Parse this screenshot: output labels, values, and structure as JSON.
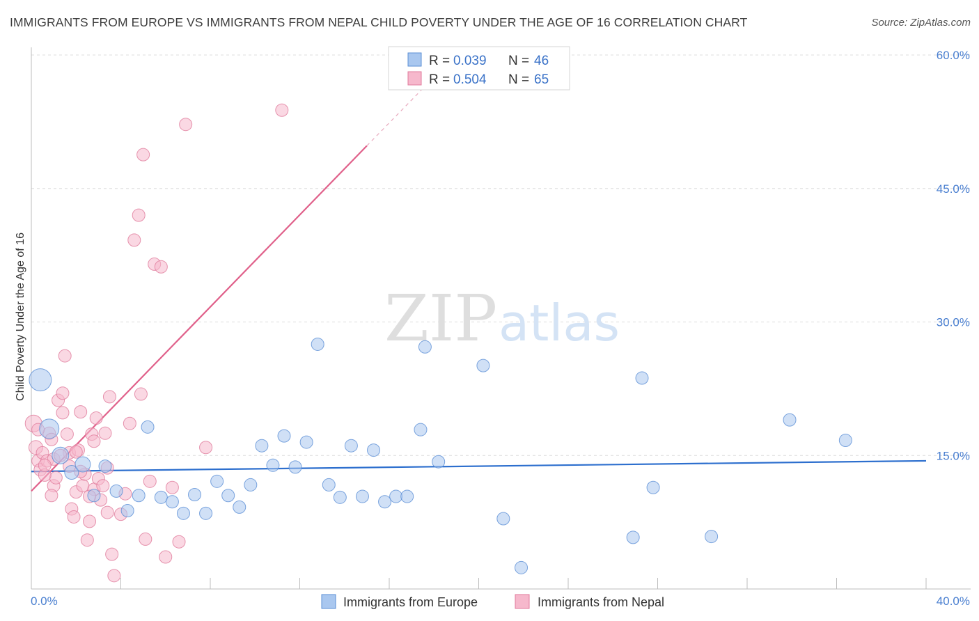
{
  "header": {
    "title": "IMMIGRANTS FROM EUROPE VS IMMIGRANTS FROM NEPAL CHILD POVERTY UNDER THE AGE OF 16 CORRELATION CHART",
    "source": "Source: ZipAtlas.com"
  },
  "watermark": {
    "zip": "ZIP",
    "atlas": "atlas"
  },
  "legend": {
    "europe": {
      "r_label": "R = ",
      "r_value": "0.039",
      "n_label": "N = ",
      "n_value": "46"
    },
    "nepal": {
      "r_label": "R = ",
      "r_value": "0.504",
      "n_label": "N = ",
      "n_value": "65"
    }
  },
  "colors": {
    "europe_fill": "#a9c7ef",
    "europe_stroke": "#5b8fd6",
    "europe_line": "#2d6fce",
    "nepal_fill": "#f6b8cc",
    "nepal_stroke": "#e07a9b",
    "nepal_line": "#e0608a",
    "tick_text": "#4a7fd0",
    "grid": "#dcdcdc"
  },
  "chart_data": {
    "type": "scatter",
    "title": "IMMIGRANTS FROM EUROPE VS IMMIGRANTS FROM NEPAL CHILD POVERTY UNDER THE AGE OF 16 CORRELATION CHART",
    "xlabel": "",
    "ylabel": "Child Poverty Under the Age of 16",
    "xlim": [
      0,
      40
    ],
    "ylim": [
      0,
      60
    ],
    "x_tick_labels": [
      "0.0%",
      "40.0%"
    ],
    "y_ticks": [
      15,
      30,
      45,
      60
    ],
    "y_tick_labels": [
      "15.0%",
      "30.0%",
      "45.0%",
      "60.0%"
    ],
    "grid": true,
    "legend_position": "top-center",
    "series": [
      {
        "name": "Immigrants from Europe",
        "r": 0.039,
        "n": 46,
        "trend": {
          "x": [
            0,
            40
          ],
          "y": [
            13.2,
            14.4
          ]
        },
        "points": [
          [
            0.4,
            23.5,
            16
          ],
          [
            0.8,
            18.0,
            14
          ],
          [
            1.3,
            15.0,
            12
          ],
          [
            1.8,
            13.1,
            10
          ],
          [
            2.3,
            14.0,
            11
          ],
          [
            3.3,
            13.8,
            9
          ],
          [
            2.8,
            10.5,
            9
          ],
          [
            3.8,
            11.0,
            9
          ],
          [
            4.3,
            8.8,
            9
          ],
          [
            4.8,
            10.5,
            9
          ],
          [
            5.2,
            18.2,
            9
          ],
          [
            5.8,
            10.3,
            9
          ],
          [
            6.3,
            9.8,
            9
          ],
          [
            6.8,
            8.5,
            9
          ],
          [
            7.3,
            10.6,
            9
          ],
          [
            7.8,
            8.5,
            9
          ],
          [
            8.3,
            12.1,
            9
          ],
          [
            8.8,
            10.5,
            9
          ],
          [
            9.3,
            9.2,
            9
          ],
          [
            9.8,
            11.7,
            9
          ],
          [
            10.3,
            16.1,
            9
          ],
          [
            10.8,
            13.9,
            9
          ],
          [
            11.3,
            17.2,
            9
          ],
          [
            11.8,
            13.7,
            9
          ],
          [
            12.3,
            16.5,
            9
          ],
          [
            12.8,
            27.5,
            9
          ],
          [
            13.3,
            11.7,
            9
          ],
          [
            13.8,
            10.3,
            9
          ],
          [
            14.3,
            16.1,
            9
          ],
          [
            14.8,
            10.4,
            9
          ],
          [
            15.3,
            15.6,
            9
          ],
          [
            15.8,
            9.8,
            9
          ],
          [
            16.3,
            10.4,
            9
          ],
          [
            16.8,
            10.4,
            9
          ],
          [
            17.4,
            17.9,
            9
          ],
          [
            17.6,
            27.2,
            9
          ],
          [
            18.2,
            14.3,
            9
          ],
          [
            20.2,
            25.1,
            9
          ],
          [
            21.1,
            7.9,
            9
          ],
          [
            21.9,
            2.4,
            9
          ],
          [
            26.9,
            5.8,
            9
          ],
          [
            27.3,
            23.7,
            9
          ],
          [
            27.8,
            11.4,
            9
          ],
          [
            30.4,
            5.9,
            9
          ],
          [
            33.9,
            19.0,
            9
          ],
          [
            36.4,
            16.7,
            9
          ]
        ]
      },
      {
        "name": "Immigrants from Nepal",
        "r": 0.504,
        "n": 65,
        "trend": {
          "x": [
            0,
            15.0
          ],
          "y": [
            11.0,
            49.8
          ]
        },
        "trend_dashed": {
          "x": [
            15.0,
            17.8
          ],
          "y": [
            49.8,
            57.0
          ]
        },
        "points": [
          [
            0.1,
            18.6,
            12
          ],
          [
            0.2,
            15.9,
            10
          ],
          [
            0.3,
            14.4,
            9
          ],
          [
            0.4,
            13.4,
            9
          ],
          [
            0.5,
            15.3,
            9
          ],
          [
            0.7,
            14.4,
            9
          ],
          [
            0.8,
            17.5,
            9
          ],
          [
            0.9,
            16.8,
            9
          ],
          [
            1.0,
            11.6,
            9
          ],
          [
            1.1,
            12.5,
            9
          ],
          [
            0.6,
            12.8,
            9
          ],
          [
            0.9,
            10.5,
            9
          ],
          [
            1.2,
            21.2,
            9
          ],
          [
            1.4,
            22.0,
            9
          ],
          [
            1.4,
            19.8,
            9
          ],
          [
            1.5,
            26.2,
            9
          ],
          [
            1.6,
            17.4,
            9
          ],
          [
            1.7,
            15.3,
            9
          ],
          [
            1.8,
            9.0,
            9
          ],
          [
            1.9,
            8.1,
            9
          ],
          [
            1.7,
            13.8,
            9
          ],
          [
            2.0,
            10.9,
            9
          ],
          [
            2.1,
            15.6,
            9
          ],
          [
            2.2,
            19.9,
            9
          ],
          [
            2.3,
            11.6,
            9
          ],
          [
            2.4,
            12.9,
            9
          ],
          [
            2.5,
            5.5,
            9
          ],
          [
            2.6,
            7.6,
            9
          ],
          [
            2.7,
            17.4,
            9
          ],
          [
            2.8,
            16.6,
            9
          ],
          [
            2.8,
            11.2,
            9
          ],
          [
            2.9,
            19.2,
            9
          ],
          [
            3.0,
            12.4,
            9
          ],
          [
            3.1,
            10.0,
            9
          ],
          [
            3.2,
            11.6,
            9
          ],
          [
            3.3,
            17.5,
            9
          ],
          [
            3.4,
            13.6,
            9
          ],
          [
            3.5,
            21.6,
            9
          ],
          [
            3.6,
            3.9,
            9
          ],
          [
            3.7,
            1.5,
            9
          ],
          [
            4.0,
            8.4,
            9
          ],
          [
            4.2,
            10.7,
            9
          ],
          [
            4.4,
            18.6,
            9
          ],
          [
            4.6,
            39.2,
            9
          ],
          [
            4.8,
            42.0,
            9
          ],
          [
            4.9,
            21.9,
            9
          ],
          [
            5.0,
            48.8,
            9
          ],
          [
            5.1,
            5.6,
            9
          ],
          [
            5.3,
            12.1,
            9
          ],
          [
            5.5,
            36.5,
            9
          ],
          [
            5.8,
            36.2,
            9
          ],
          [
            6.0,
            3.6,
            9
          ],
          [
            6.3,
            11.4,
            9
          ],
          [
            6.6,
            5.3,
            9
          ],
          [
            6.9,
            52.2,
            9
          ],
          [
            7.8,
            15.9,
            9
          ],
          [
            11.2,
            53.8,
            9
          ],
          [
            1.0,
            14.6,
            9
          ],
          [
            0.6,
            13.9,
            9
          ],
          [
            2.2,
            13.2,
            9
          ],
          [
            2.6,
            10.4,
            9
          ],
          [
            3.4,
            8.6,
            9
          ],
          [
            1.3,
            15.0,
            9
          ],
          [
            0.3,
            17.9,
            9
          ],
          [
            2.0,
            15.4,
            9
          ]
        ]
      }
    ]
  },
  "bottom_legend": {
    "europe_label": "Immigrants from Europe",
    "nepal_label": "Immigrants from Nepal"
  }
}
